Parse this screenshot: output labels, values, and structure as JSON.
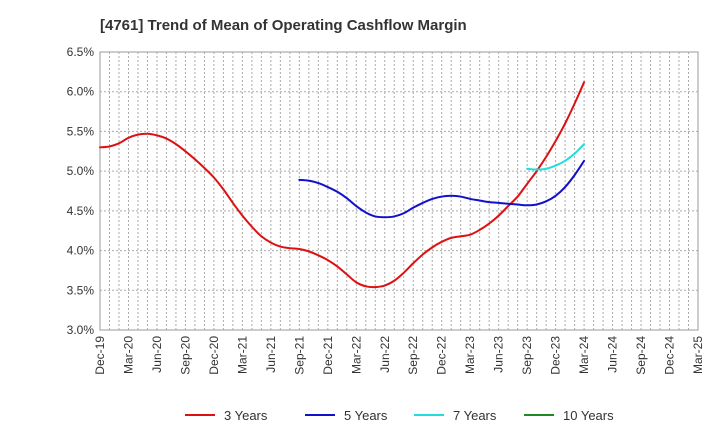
{
  "chart_data": {
    "type": "line",
    "title": "[4761]  Trend of Mean of Operating Cashflow Margin",
    "xlabel": "",
    "ylabel": "",
    "x_ticks": [
      "Dec-19",
      "Mar-20",
      "Jun-20",
      "Sep-20",
      "Dec-20",
      "Mar-21",
      "Jun-21",
      "Sep-21",
      "Dec-21",
      "Mar-22",
      "Jun-22",
      "Sep-22",
      "Dec-22",
      "Mar-23",
      "Jun-23",
      "Sep-23",
      "Dec-23",
      "Mar-24",
      "Jun-24",
      "Sep-24",
      "Dec-24",
      "Mar-25"
    ],
    "y_ticks": [
      "3.0%",
      "3.5%",
      "4.0%",
      "4.5%",
      "5.0%",
      "5.5%",
      "6.0%",
      "6.5%"
    ],
    "ylim": [
      3.0,
      6.5
    ],
    "grid": true,
    "legend_position": "bottom",
    "series": [
      {
        "name": "3 Years",
        "color": "#dd1111",
        "x": [
          "Dec-19",
          "Jan-20",
          "Feb-20",
          "Mar-20",
          "Apr-20",
          "May-20",
          "Jun-20",
          "Jul-20",
          "Aug-20",
          "Sep-20",
          "Oct-20",
          "Nov-20",
          "Dec-20",
          "Jan-21",
          "Feb-21",
          "Mar-21",
          "Apr-21",
          "May-21",
          "Jun-21",
          "Jul-21",
          "Aug-21",
          "Sep-21",
          "Oct-21",
          "Nov-21",
          "Dec-21",
          "Jan-22",
          "Feb-22",
          "Mar-22",
          "Apr-22",
          "May-22",
          "Jun-22",
          "Jul-22",
          "Aug-22",
          "Sep-22",
          "Oct-22",
          "Nov-22",
          "Dec-22",
          "Jan-23",
          "Feb-23",
          "Mar-23",
          "Apr-23",
          "May-23",
          "Jun-23",
          "Jul-23",
          "Aug-23",
          "Sep-23",
          "Oct-23",
          "Nov-23",
          "Dec-23",
          "Jan-24",
          "Feb-24",
          "Mar-24"
        ],
        "values": [
          5.3,
          5.31,
          5.35,
          5.42,
          5.46,
          5.47,
          5.45,
          5.41,
          5.34,
          5.25,
          5.15,
          5.04,
          4.92,
          4.77,
          4.6,
          4.44,
          4.3,
          4.18,
          4.1,
          4.05,
          4.03,
          4.02,
          3.99,
          3.94,
          3.88,
          3.8,
          3.7,
          3.6,
          3.55,
          3.54,
          3.56,
          3.62,
          3.72,
          3.84,
          3.95,
          4.04,
          4.11,
          4.16,
          4.18,
          4.2,
          4.26,
          4.34,
          4.44,
          4.56,
          4.68,
          4.84,
          5.0,
          5.18,
          5.38,
          5.6,
          5.85,
          6.12
        ]
      },
      {
        "name": "5 Years",
        "color": "#1111cc",
        "x": [
          "Sep-21",
          "Oct-21",
          "Nov-21",
          "Dec-21",
          "Jan-22",
          "Feb-22",
          "Mar-22",
          "Apr-22",
          "May-22",
          "Jun-22",
          "Jul-22",
          "Aug-22",
          "Sep-22",
          "Oct-22",
          "Nov-22",
          "Dec-22",
          "Jan-23",
          "Feb-23",
          "Mar-23",
          "Apr-23",
          "May-23",
          "Jun-23",
          "Jul-23",
          "Aug-23",
          "Sep-23",
          "Oct-23",
          "Nov-23",
          "Dec-23",
          "Jan-24",
          "Feb-24",
          "Mar-24"
        ],
        "values": [
          4.89,
          4.88,
          4.85,
          4.8,
          4.74,
          4.66,
          4.56,
          4.48,
          4.43,
          4.42,
          4.43,
          4.47,
          4.54,
          4.6,
          4.65,
          4.68,
          4.69,
          4.68,
          4.65,
          4.63,
          4.61,
          4.6,
          4.59,
          4.58,
          4.57,
          4.58,
          4.62,
          4.69,
          4.8,
          4.95,
          5.13
        ]
      },
      {
        "name": "7 Years",
        "color": "#22dddd",
        "x": [
          "Sep-23",
          "Oct-23",
          "Nov-23",
          "Dec-23",
          "Jan-24",
          "Feb-24",
          "Mar-24"
        ],
        "values": [
          5.03,
          5.02,
          5.03,
          5.07,
          5.13,
          5.22,
          5.34
        ]
      },
      {
        "name": "10 Years",
        "color": "#228822",
        "x": [],
        "values": []
      }
    ]
  }
}
